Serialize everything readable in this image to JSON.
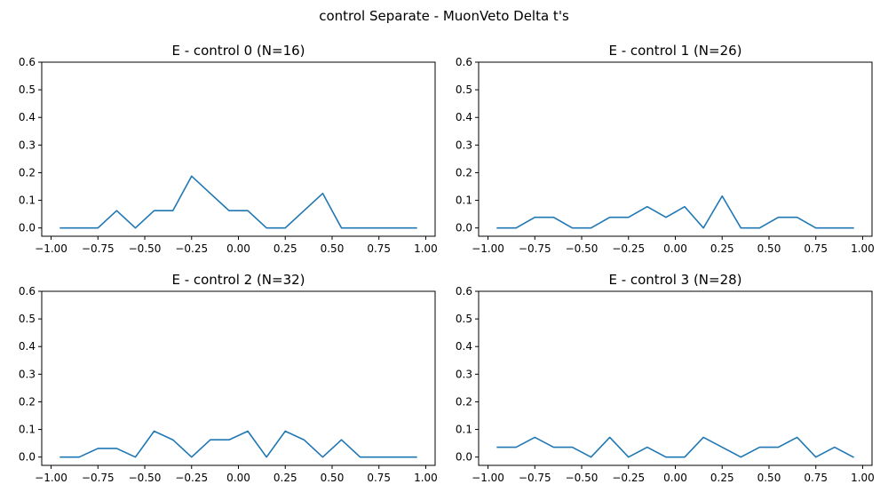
{
  "suptitle": "control Separate - MuonVeto Delta t's",
  "line_color": "#1f77b4",
  "chart_data": [
    {
      "type": "line",
      "title": "E - control 0 (N=16)",
      "xlabel": "",
      "ylabel": "",
      "xlim": [
        -1.05,
        1.05
      ],
      "ylim": [
        -0.03,
        0.6
      ],
      "xticks": [
        -1.0,
        -0.75,
        -0.5,
        -0.25,
        0.0,
        0.25,
        0.5,
        0.75,
        1.0
      ],
      "xtick_labels": [
        "−1.00",
        "−0.75",
        "−0.50",
        "−0.25",
        "0.00",
        "0.25",
        "0.50",
        "0.75",
        "1.00"
      ],
      "yticks": [
        0.0,
        0.1,
        0.2,
        0.3,
        0.4,
        0.5,
        0.6
      ],
      "ytick_labels": [
        "0.0",
        "0.1",
        "0.2",
        "0.3",
        "0.4",
        "0.5",
        "0.6"
      ],
      "x": [
        -0.95,
        -0.85,
        -0.75,
        -0.65,
        -0.55,
        -0.45,
        -0.35,
        -0.25,
        -0.15,
        -0.05,
        0.05,
        0.15,
        0.25,
        0.35,
        0.45,
        0.55,
        0.65,
        0.75,
        0.85,
        0.95
      ],
      "series": [
        {
          "values": [
            0,
            0,
            0,
            0.0625,
            0,
            0.0625,
            0.0625,
            0.1875,
            0.125,
            0.0625,
            0.0625,
            0,
            0,
            0.0625,
            0.125,
            0,
            0,
            0,
            0,
            0
          ]
        }
      ]
    },
    {
      "type": "line",
      "title": "E - control 1 (N=26)",
      "xlabel": "",
      "ylabel": "",
      "xlim": [
        -1.05,
        1.05
      ],
      "ylim": [
        -0.03,
        0.6
      ],
      "xticks": [
        -1.0,
        -0.75,
        -0.5,
        -0.25,
        0.0,
        0.25,
        0.5,
        0.75,
        1.0
      ],
      "xtick_labels": [
        "−1.00",
        "−0.75",
        "−0.50",
        "−0.25",
        "0.00",
        "0.25",
        "0.50",
        "0.75",
        "1.00"
      ],
      "yticks": [
        0.0,
        0.1,
        0.2,
        0.3,
        0.4,
        0.5,
        0.6
      ],
      "ytick_labels": [
        "0.0",
        "0.1",
        "0.2",
        "0.3",
        "0.4",
        "0.5",
        "0.6"
      ],
      "x": [
        -0.95,
        -0.85,
        -0.75,
        -0.65,
        -0.55,
        -0.45,
        -0.35,
        -0.25,
        -0.15,
        -0.05,
        0.05,
        0.15,
        0.25,
        0.35,
        0.45,
        0.55,
        0.65,
        0.75,
        0.85,
        0.95
      ],
      "series": [
        {
          "values": [
            0,
            0,
            0.0385,
            0.0385,
            0,
            0,
            0.0385,
            0.0385,
            0.0769,
            0.0385,
            0.0769,
            0,
            0.1154,
            0,
            0,
            0.0385,
            0.0385,
            0,
            0,
            0
          ]
        }
      ]
    },
    {
      "type": "line",
      "title": "E - control 2 (N=32)",
      "xlabel": "",
      "ylabel": "",
      "xlim": [
        -1.05,
        1.05
      ],
      "ylim": [
        -0.03,
        0.6
      ],
      "xticks": [
        -1.0,
        -0.75,
        -0.5,
        -0.25,
        0.0,
        0.25,
        0.5,
        0.75,
        1.0
      ],
      "xtick_labels": [
        "−1.00",
        "−0.75",
        "−0.50",
        "−0.25",
        "0.00",
        "0.25",
        "0.50",
        "0.75",
        "1.00"
      ],
      "yticks": [
        0.0,
        0.1,
        0.2,
        0.3,
        0.4,
        0.5,
        0.6
      ],
      "ytick_labels": [
        "0.0",
        "0.1",
        "0.2",
        "0.3",
        "0.4",
        "0.5",
        "0.6"
      ],
      "x": [
        -0.95,
        -0.85,
        -0.75,
        -0.65,
        -0.55,
        -0.45,
        -0.35,
        -0.25,
        -0.15,
        -0.05,
        0.05,
        0.15,
        0.25,
        0.35,
        0.45,
        0.55,
        0.65,
        0.75,
        0.85,
        0.95
      ],
      "series": [
        {
          "values": [
            0,
            0,
            0.03125,
            0.03125,
            0,
            0.09375,
            0.0625,
            0,
            0.0625,
            0.0625,
            0.09375,
            0,
            0.09375,
            0.0625,
            0,
            0.0625,
            0,
            0,
            0,
            0
          ]
        }
      ]
    },
    {
      "type": "line",
      "title": "E - control 3 (N=28)",
      "xlabel": "",
      "ylabel": "",
      "xlim": [
        -1.05,
        1.05
      ],
      "ylim": [
        -0.03,
        0.6
      ],
      "xticks": [
        -1.0,
        -0.75,
        -0.5,
        -0.25,
        0.0,
        0.25,
        0.5,
        0.75,
        1.0
      ],
      "xtick_labels": [
        "−1.00",
        "−0.75",
        "−0.50",
        "−0.25",
        "0.00",
        "0.25",
        "0.50",
        "0.75",
        "1.00"
      ],
      "yticks": [
        0.0,
        0.1,
        0.2,
        0.3,
        0.4,
        0.5,
        0.6
      ],
      "ytick_labels": [
        "0.0",
        "0.1",
        "0.2",
        "0.3",
        "0.4",
        "0.5",
        "0.6"
      ],
      "x": [
        -0.95,
        -0.85,
        -0.75,
        -0.65,
        -0.55,
        -0.45,
        -0.35,
        -0.25,
        -0.15,
        -0.05,
        0.05,
        0.15,
        0.25,
        0.35,
        0.45,
        0.55,
        0.65,
        0.75,
        0.85,
        0.95
      ],
      "series": [
        {
          "values": [
            0.0357,
            0.0357,
            0.0714,
            0.0357,
            0.0357,
            0,
            0.0714,
            0,
            0.0357,
            0,
            0,
            0.0714,
            0.0357,
            0,
            0.0357,
            0.0357,
            0.0714,
            0,
            0.0357,
            0
          ]
        }
      ]
    }
  ]
}
